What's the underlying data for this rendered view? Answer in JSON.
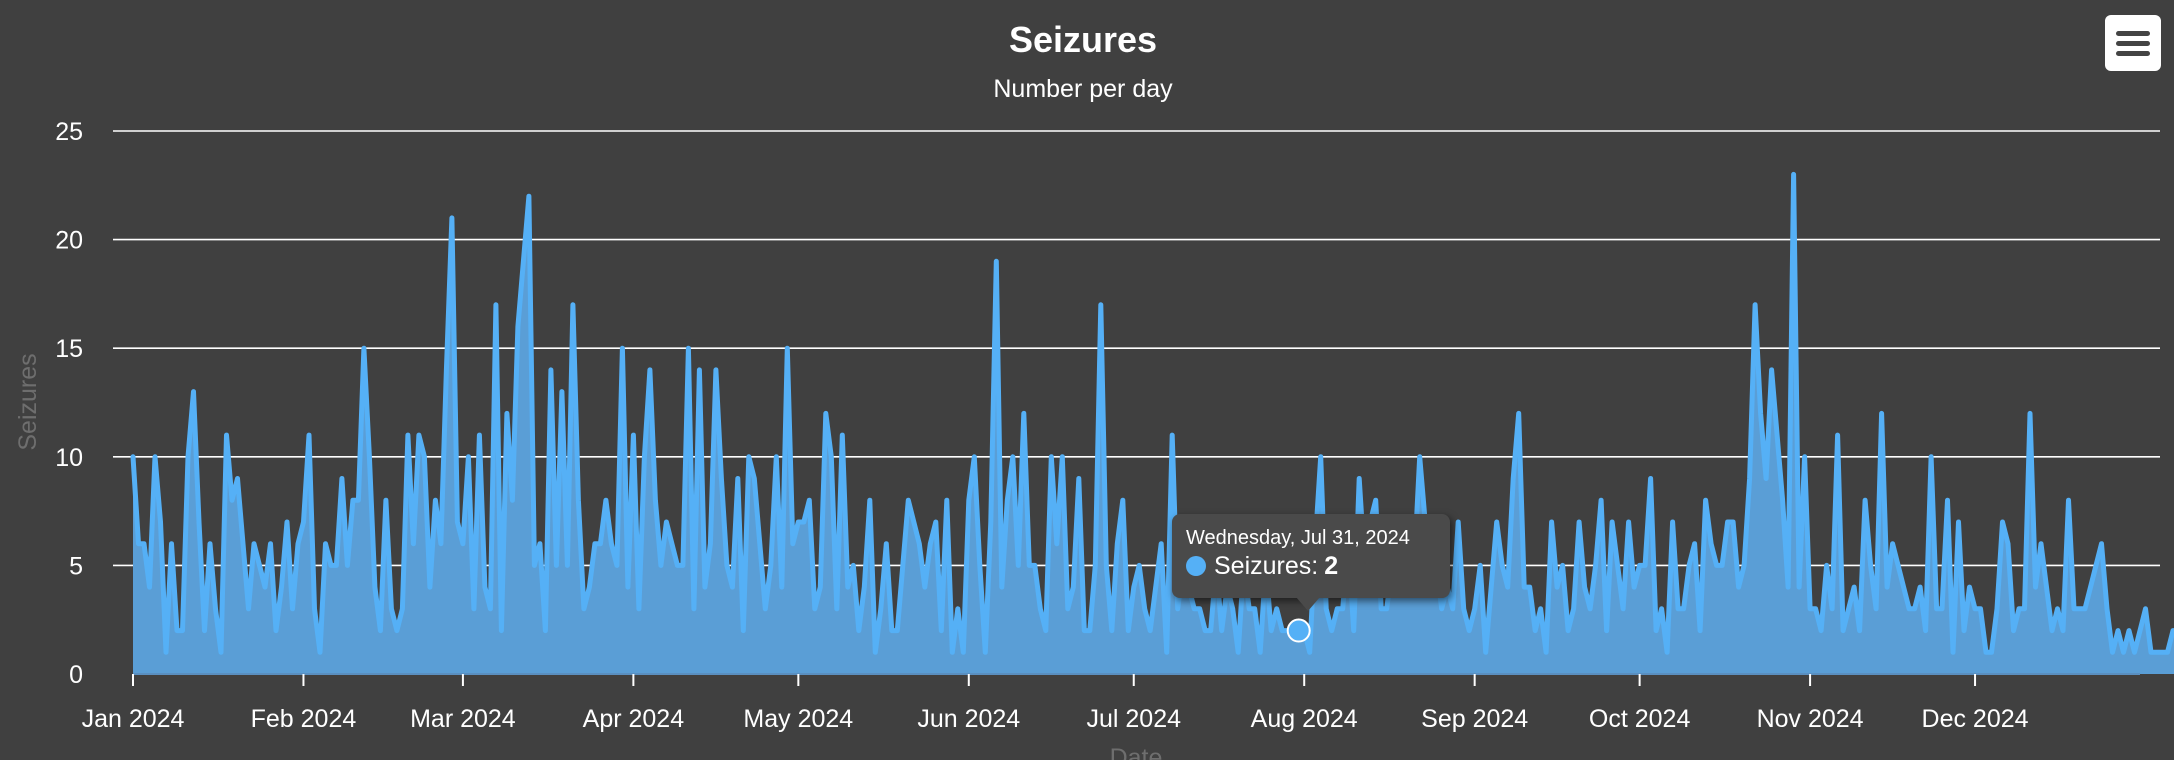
{
  "chart_data": {
    "type": "area",
    "title": "Seizures",
    "subtitle": "Number per day",
    "xlabel": "Date",
    "ylabel": "Seizures",
    "ylim": [
      0,
      25
    ],
    "yticks": [
      "0",
      "5",
      "10",
      "15",
      "20",
      "25"
    ],
    "xticks": [
      "Jan 2024",
      "Feb 2024",
      "Mar 2024",
      "Apr 2024",
      "May 2024",
      "Jun 2024",
      "Jul 2024",
      "Aug 2024",
      "Sep 2024",
      "Oct 2024",
      "Nov 2024",
      "Dec 2024"
    ],
    "x_start": "2024-01-01",
    "x_end": "2024-12-31",
    "grid": true,
    "legend": "none",
    "series_color": "#55b0f6",
    "fill_color": "#5a9ed6",
    "series": [
      {
        "name": "Seizures",
        "values": [
          10,
          6,
          6,
          4,
          10,
          7,
          1,
          6,
          2,
          2,
          10,
          13,
          7,
          2,
          6,
          3,
          1,
          11,
          8,
          9,
          6,
          3,
          6,
          5,
          4,
          6,
          2,
          4,
          7,
          3,
          6,
          7,
          11,
          3,
          1,
          6,
          5,
          5,
          9,
          5,
          8,
          8,
          15,
          10,
          4,
          2,
          8,
          3,
          2,
          3,
          11,
          6,
          11,
          10,
          4,
          8,
          6,
          14,
          21,
          7,
          6,
          10,
          3,
          11,
          4,
          3,
          17,
          2,
          12,
          8,
          16,
          19,
          22,
          5,
          6,
          2,
          14,
          5,
          13,
          5,
          17,
          8,
          3,
          4,
          6,
          6,
          8,
          6,
          5,
          15,
          4,
          11,
          3,
          10,
          14,
          8,
          5,
          7,
          6,
          5,
          5,
          15,
          3,
          14,
          4,
          6,
          14,
          9,
          5,
          4,
          9,
          2,
          10,
          9,
          6,
          3,
          5,
          10,
          4,
          15,
          6,
          7,
          7,
          8,
          3,
          4,
          12,
          10,
          3,
          11,
          4,
          5,
          2,
          4,
          8,
          1,
          3,
          6,
          2,
          2,
          5,
          8,
          7,
          6,
          4,
          6,
          7,
          2,
          8,
          1,
          3,
          1,
          8,
          10,
          5,
          1,
          7,
          19,
          4,
          8,
          10,
          5,
          12,
          5,
          5,
          3,
          2,
          10,
          6,
          10,
          3,
          4,
          9,
          2,
          2,
          5,
          17,
          5,
          2,
          6,
          8,
          2,
          4,
          5,
          3,
          2,
          4,
          6,
          1,
          11,
          3,
          5,
          4,
          3,
          3,
          2,
          2,
          5,
          2,
          4,
          3,
          1,
          5,
          3,
          3,
          1,
          5,
          2,
          3,
          2,
          2,
          2,
          2,
          2,
          1,
          6,
          10,
          3,
          2,
          3,
          3,
          6,
          2,
          9,
          5,
          7,
          8,
          3,
          3,
          5,
          4,
          4,
          6,
          5,
          10,
          7,
          4,
          5,
          3,
          4,
          3,
          7,
          3,
          2,
          3,
          5,
          1,
          4,
          7,
          5,
          4,
          9,
          12,
          4,
          4,
          2,
          3,
          1,
          7,
          4,
          5,
          2,
          3,
          7,
          4,
          3,
          5,
          8,
          2,
          7,
          5,
          3,
          7,
          4,
          5,
          5,
          9,
          2,
          3,
          1,
          7,
          3,
          3,
          5,
          6,
          2,
          8,
          6,
          5,
          5,
          7,
          7,
          4,
          5,
          9,
          17,
          12,
          9,
          14,
          11,
          8,
          4,
          23,
          4,
          10,
          3,
          3,
          2,
          5,
          3,
          11,
          2,
          3,
          4,
          2,
          8,
          5,
          3,
          12,
          4,
          6,
          5,
          4,
          3,
          3,
          4,
          2,
          10,
          3,
          3,
          8,
          1,
          7,
          2,
          4,
          3,
          3,
          1,
          1,
          3,
          7,
          6,
          2,
          3,
          3,
          12,
          4,
          6,
          4,
          2,
          3,
          2,
          8,
          3,
          3,
          3,
          4,
          5,
          6,
          3,
          1,
          2,
          1,
          2,
          1,
          2,
          3,
          1,
          1,
          1,
          1,
          2,
          2
        ]
      }
    ],
    "tooltip": {
      "date": "Wednesday, Jul 31, 2024",
      "series": "Seizures",
      "value": "2",
      "day_index": 212
    }
  }
}
